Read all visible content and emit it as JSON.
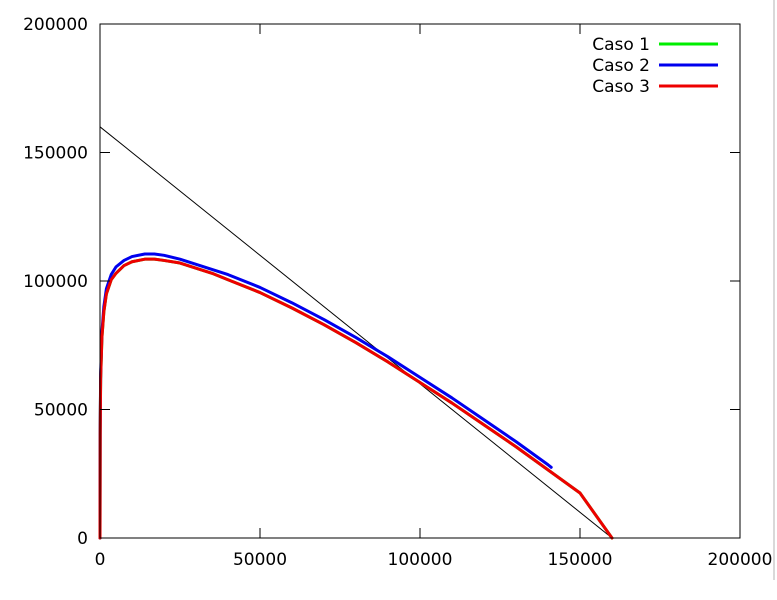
{
  "chart_data": {
    "type": "line",
    "title": "",
    "xlabel": "",
    "ylabel": "",
    "xlim": [
      0,
      200000
    ],
    "ylim": [
      0,
      200000
    ],
    "x_ticks": [
      0,
      50000,
      100000,
      150000,
      200000
    ],
    "y_ticks": [
      0,
      50000,
      100000,
      150000,
      200000
    ],
    "x_tick_labels": [
      "0",
      "50000",
      "100000",
      "150000",
      "200000"
    ],
    "y_tick_labels": [
      "0",
      "50000",
      "100000",
      "150000",
      "200000"
    ],
    "grid": false,
    "legend_position": "top-right",
    "reference_line": {
      "color": "#000000",
      "points": [
        [
          0,
          160000
        ],
        [
          160000,
          0
        ]
      ]
    },
    "series": [
      {
        "name": "Caso 1",
        "color": "#00ee00",
        "points": [
          [
            0,
            0
          ],
          [
            60,
            40000
          ],
          [
            200,
            62000
          ],
          [
            600,
            78000
          ],
          [
            1200,
            88000
          ],
          [
            2000,
            95000
          ],
          [
            3500,
            100500
          ],
          [
            5000,
            103000
          ],
          [
            7500,
            106000
          ],
          [
            10000,
            107500
          ],
          [
            14000,
            108500
          ],
          [
            17000,
            108500
          ],
          [
            20000,
            108000
          ],
          [
            25000,
            107000
          ],
          [
            30000,
            105000
          ],
          [
            35000,
            103000
          ],
          [
            40000,
            100500
          ],
          [
            50000,
            95500
          ],
          [
            60000,
            89500
          ],
          [
            70000,
            83000
          ],
          [
            80000,
            76000
          ],
          [
            90000,
            68500
          ],
          [
            100000,
            60500
          ],
          [
            110000,
            52500
          ],
          [
            120000,
            44000
          ],
          [
            130000,
            35500
          ],
          [
            140000,
            26500
          ],
          [
            150000,
            17500
          ],
          [
            160000,
            0
          ]
        ]
      },
      {
        "name": "Caso 2",
        "color": "#0000ee",
        "points": [
          [
            0,
            0
          ],
          [
            60,
            42000
          ],
          [
            200,
            64000
          ],
          [
            600,
            80000
          ],
          [
            1200,
            90000
          ],
          [
            2000,
            97000
          ],
          [
            3500,
            102500
          ],
          [
            5000,
            105500
          ],
          [
            7500,
            108000
          ],
          [
            10000,
            109500
          ],
          [
            14000,
            110500
          ],
          [
            17000,
            110500
          ],
          [
            20000,
            110000
          ],
          [
            25000,
            108500
          ],
          [
            30000,
            106500
          ],
          [
            35000,
            104500
          ],
          [
            40000,
            102500
          ],
          [
            50000,
            97500
          ],
          [
            60000,
            91500
          ],
          [
            70000,
            85000
          ],
          [
            80000,
            78000
          ],
          [
            90000,
            70500
          ],
          [
            100000,
            62500
          ],
          [
            110000,
            54500
          ],
          [
            120000,
            46000
          ],
          [
            130000,
            37500
          ],
          [
            140000,
            28500
          ],
          [
            141000,
            27500
          ]
        ]
      },
      {
        "name": "Caso 3",
        "color": "#ee0000",
        "points": [
          [
            0,
            0
          ],
          [
            60,
            40000
          ],
          [
            200,
            62000
          ],
          [
            600,
            78000
          ],
          [
            1200,
            88000
          ],
          [
            2000,
            95000
          ],
          [
            3500,
            100500
          ],
          [
            5000,
            103000
          ],
          [
            7500,
            106000
          ],
          [
            10000,
            107500
          ],
          [
            14000,
            108500
          ],
          [
            17000,
            108500
          ],
          [
            20000,
            108000
          ],
          [
            25000,
            107000
          ],
          [
            30000,
            105000
          ],
          [
            35000,
            103000
          ],
          [
            40000,
            100500
          ],
          [
            50000,
            95500
          ],
          [
            60000,
            89500
          ],
          [
            70000,
            83000
          ],
          [
            80000,
            76000
          ],
          [
            90000,
            68500
          ],
          [
            100000,
            60500
          ],
          [
            110000,
            52500
          ],
          [
            120000,
            44000
          ],
          [
            130000,
            35500
          ],
          [
            140000,
            26500
          ],
          [
            150000,
            17500
          ],
          [
            160000,
            0
          ]
        ]
      }
    ]
  }
}
